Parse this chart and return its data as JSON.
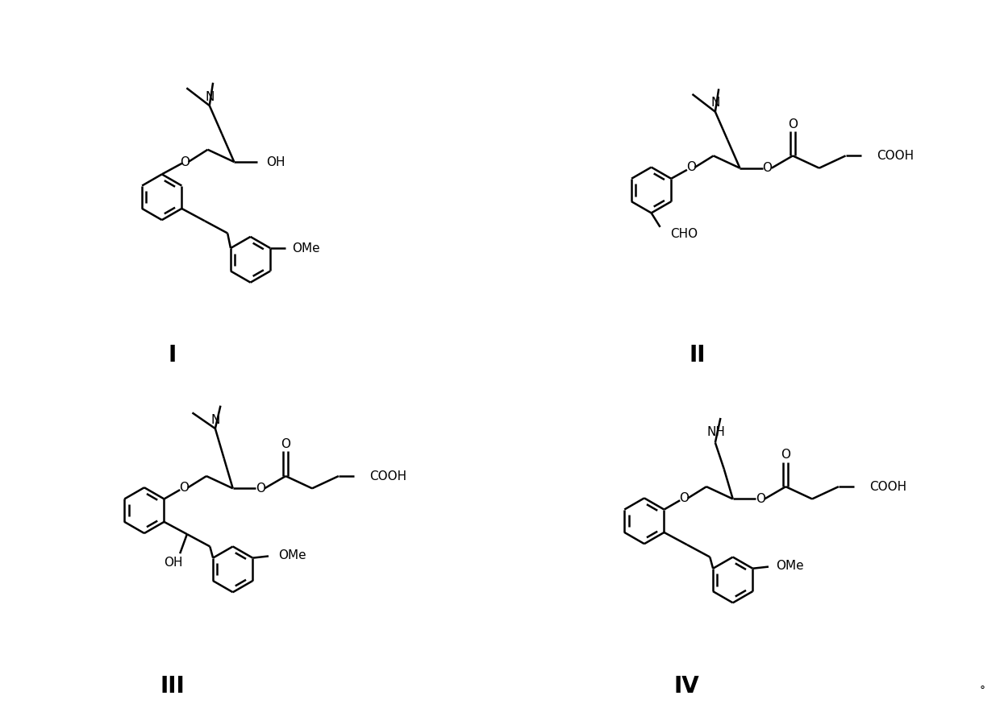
{
  "background_color": "#ffffff",
  "labels": [
    "I",
    "II",
    "III",
    "IV"
  ],
  "label_fontsize": 20,
  "label_fontweight": "bold",
  "figsize": [
    12.4,
    8.74
  ],
  "dpi": 100,
  "line_color": "#000000",
  "line_width": 1.8,
  "font_size": 11,
  "degree_symbol": "°"
}
